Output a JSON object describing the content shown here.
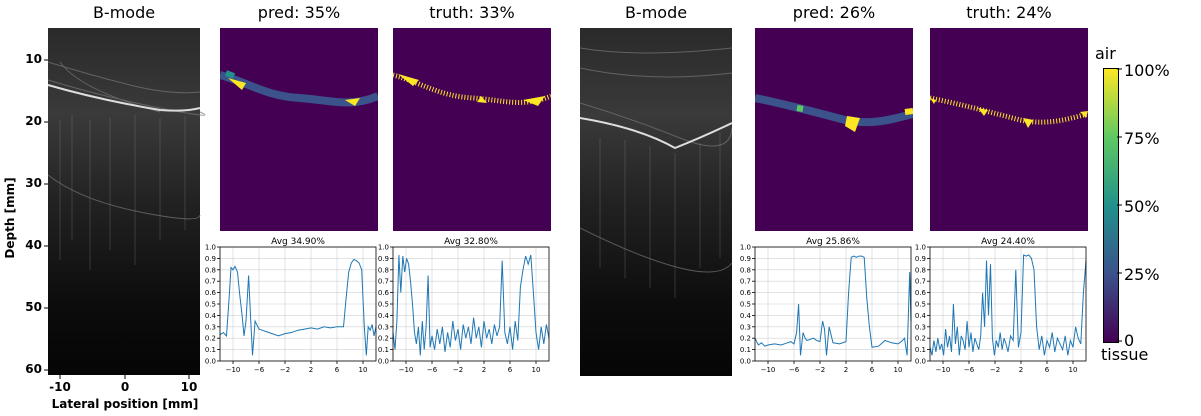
{
  "panels_left": {
    "bmode_title": "B-mode",
    "pred_title": "pred: 35%",
    "truth_title": "truth: 33%"
  },
  "panels_right": {
    "bmode_title": "B-mode",
    "pred_title": "pred: 26%",
    "truth_title": "truth: 24%"
  },
  "bmode_axes": {
    "ylabel": "Depth [mm]",
    "xlabel": "Lateral position [mm]",
    "yticks": [
      "10",
      "20",
      "30",
      "40",
      "50",
      "60"
    ],
    "xticks": [
      "-10",
      "0",
      "10"
    ]
  },
  "colorbar": {
    "top_label": "air",
    "bottom_label": "tissue",
    "ticks": [
      "100%",
      "75%",
      "50%",
      "25%",
      "0"
    ]
  },
  "colors": {
    "mask_bg": "#440154",
    "line": "#1f77b4",
    "air": "#fde725"
  },
  "chart_data": [
    {
      "type": "line",
      "title": "Avg 34.90%",
      "xlim": [
        -12,
        12
      ],
      "ylim": [
        0.0,
        1.0
      ],
      "xticks": [
        -10,
        -6,
        -2,
        2,
        6,
        10
      ],
      "yticks": [
        0.0,
        0.1,
        0.2,
        0.3,
        0.4,
        0.5,
        0.6,
        0.7,
        0.8,
        0.9,
        1.0
      ],
      "x": [
        -12,
        -11.5,
        -11,
        -10.6,
        -10.3,
        -10,
        -9.7,
        -9.3,
        -9,
        -8.6,
        -8.3,
        -8,
        -7.6,
        -7.3,
        -7,
        -6.6,
        -6,
        -5.5,
        -5,
        -4,
        -3,
        -2,
        -1,
        0,
        1,
        2,
        3,
        4,
        5,
        6,
        6.5,
        7,
        7.4,
        7.8,
        8.2,
        8.6,
        9,
        9.4,
        9.8,
        10.2,
        10.5,
        10.8,
        11.1,
        11.4,
        11.7,
        12
      ],
      "y": [
        0.23,
        0.25,
        0.22,
        0.55,
        0.82,
        0.8,
        0.83,
        0.78,
        0.6,
        0.4,
        0.22,
        0.35,
        0.75,
        0.4,
        0.05,
        0.35,
        0.28,
        0.27,
        0.26,
        0.24,
        0.22,
        0.24,
        0.25,
        0.27,
        0.28,
        0.29,
        0.28,
        0.3,
        0.29,
        0.3,
        0.3,
        0.3,
        0.55,
        0.78,
        0.86,
        0.89,
        0.88,
        0.86,
        0.8,
        0.3,
        0.05,
        0.3,
        0.27,
        0.32,
        0.22,
        0.3
      ]
    },
    {
      "type": "line",
      "title": "Avg 32.80%",
      "xlim": [
        -12,
        12
      ],
      "ylim": [
        0.0,
        1.0
      ],
      "xticks": [
        -10,
        -6,
        -2,
        2,
        6,
        10
      ],
      "yticks": [
        0.0,
        0.1,
        0.2,
        0.3,
        0.4,
        0.5,
        0.6,
        0.7,
        0.8,
        0.9,
        1.0
      ],
      "x": [
        -12,
        -11.7,
        -11.4,
        -11.1,
        -10.8,
        -10.5,
        -10.2,
        -9.9,
        -9.6,
        -9.3,
        -9,
        -8.7,
        -8.4,
        -8.1,
        -7.8,
        -7.5,
        -7.2,
        -6.9,
        -6.6,
        -6.3,
        -6,
        -5.6,
        -5.2,
        -4.8,
        -4.4,
        -4,
        -3.6,
        -3.2,
        -2.8,
        -2.4,
        -2,
        -1.6,
        -1.2,
        -0.8,
        -0.4,
        0,
        0.4,
        0.8,
        1.2,
        1.6,
        2,
        2.4,
        2.8,
        3.2,
        3.6,
        4,
        4.4,
        4.8,
        5.2,
        5.6,
        6,
        6.4,
        6.8,
        7.2,
        7.6,
        8,
        8.4,
        8.8,
        9.2,
        9.6,
        10,
        10.4,
        10.8,
        11.2,
        11.6,
        12
      ],
      "y": [
        0.25,
        0.1,
        0.35,
        0.93,
        0.6,
        0.92,
        0.78,
        0.9,
        0.85,
        0.7,
        0.5,
        0.25,
        0.15,
        0.3,
        0.05,
        0.35,
        0.1,
        0.3,
        0.75,
        0.12,
        0.22,
        0.1,
        0.28,
        0.15,
        0.3,
        0.08,
        0.25,
        0.12,
        0.35,
        0.18,
        0.28,
        0.1,
        0.32,
        0.2,
        0.3,
        0.15,
        0.38,
        0.2,
        0.3,
        0.12,
        0.35,
        0.2,
        0.28,
        0.15,
        0.32,
        0.22,
        0.3,
        0.88,
        0.25,
        0.15,
        0.3,
        0.1,
        0.35,
        0.18,
        0.65,
        0.8,
        0.92,
        0.85,
        0.93,
        0.6,
        0.25,
        0.1,
        0.3,
        0.15,
        0.32,
        0.2
      ]
    },
    {
      "type": "line",
      "title": "Avg 25.86%",
      "xlim": [
        -12,
        12
      ],
      "ylim": [
        0.0,
        1.0
      ],
      "xticks": [
        -10,
        -6,
        -2,
        2,
        6,
        10
      ],
      "yticks": [
        0.0,
        0.1,
        0.2,
        0.3,
        0.4,
        0.5,
        0.6,
        0.7,
        0.8,
        0.9,
        1.0
      ],
      "x": [
        -12,
        -11.5,
        -11,
        -10.5,
        -10,
        -9,
        -8,
        -7,
        -6.5,
        -6,
        -5.6,
        -5.3,
        -5,
        -4.6,
        -4.3,
        -4,
        -3.5,
        -3,
        -2.5,
        -2,
        -1.6,
        -1.3,
        -1,
        -0.6,
        0,
        1,
        2,
        2.4,
        2.8,
        3.2,
        3.6,
        4,
        4.4,
        4.8,
        5.2,
        5.6,
        6,
        7,
        8,
        9,
        10,
        10.5,
        11,
        11.4,
        11.8,
        12
      ],
      "y": [
        0.2,
        0.14,
        0.16,
        0.13,
        0.14,
        0.15,
        0.14,
        0.16,
        0.17,
        0.15,
        0.25,
        0.5,
        0.05,
        0.25,
        0.2,
        0.18,
        0.19,
        0.2,
        0.18,
        0.17,
        0.35,
        0.28,
        0.05,
        0.3,
        0.16,
        0.15,
        0.17,
        0.6,
        0.91,
        0.92,
        0.91,
        0.92,
        0.92,
        0.91,
        0.55,
        0.3,
        0.12,
        0.13,
        0.18,
        0.16,
        0.15,
        0.17,
        0.2,
        0.05,
        0.78,
        0.35
      ]
    },
    {
      "type": "line",
      "title": "Avg 24.40%",
      "xlim": [
        -12,
        12
      ],
      "ylim": [
        0.0,
        1.0
      ],
      "xticks": [
        -10,
        -6,
        -2,
        2,
        6,
        10
      ],
      "yticks": [
        0.0,
        0.1,
        0.2,
        0.3,
        0.4,
        0.5,
        0.6,
        0.7,
        0.8,
        0.9,
        1.0
      ],
      "x": [
        -12,
        -11.7,
        -11.4,
        -11.1,
        -10.8,
        -10.5,
        -10.2,
        -9.9,
        -9.6,
        -9.3,
        -9,
        -8.7,
        -8.4,
        -8.1,
        -7.8,
        -7.5,
        -7.2,
        -6.9,
        -6.6,
        -6.3,
        -6,
        -5.7,
        -5.4,
        -5.1,
        -4.8,
        -4.5,
        -4.2,
        -3.9,
        -3.6,
        -3.3,
        -3,
        -2.7,
        -2.4,
        -2.1,
        -1.8,
        -1.5,
        -1.2,
        -0.9,
        -0.6,
        -0.3,
        0,
        0.4,
        0.8,
        1.2,
        1.6,
        2,
        2.4,
        2.8,
        3.2,
        3.6,
        4,
        4.4,
        4.8,
        5.2,
        5.6,
        6,
        6.4,
        6.8,
        7.2,
        7.6,
        8,
        8.4,
        8.8,
        9.2,
        9.6,
        10,
        10.4,
        10.8,
        11.2,
        11.6,
        12
      ],
      "y": [
        0.12,
        0.05,
        0.18,
        0.08,
        0.2,
        0.1,
        0.15,
        0.05,
        0.28,
        0.12,
        0.22,
        0.08,
        0.5,
        0.15,
        0.3,
        0.05,
        0.22,
        0.18,
        0.1,
        0.35,
        0.12,
        0.25,
        0.08,
        0.2,
        0.15,
        0.1,
        0.22,
        0.6,
        0.3,
        0.88,
        0.4,
        0.85,
        0.2,
        0.05,
        0.18,
        0.12,
        0.25,
        0.1,
        0.2,
        0.15,
        0.08,
        0.22,
        0.18,
        0.8,
        0.12,
        0.25,
        0.93,
        0.92,
        0.93,
        0.9,
        0.8,
        0.3,
        0.1,
        0.22,
        0.05,
        0.18,
        0.12,
        0.25,
        0.08,
        0.2,
        0.15,
        0.1,
        0.22,
        0.05,
        0.18,
        0.12,
        0.3,
        0.2,
        0.15,
        0.6,
        0.88
      ]
    }
  ]
}
